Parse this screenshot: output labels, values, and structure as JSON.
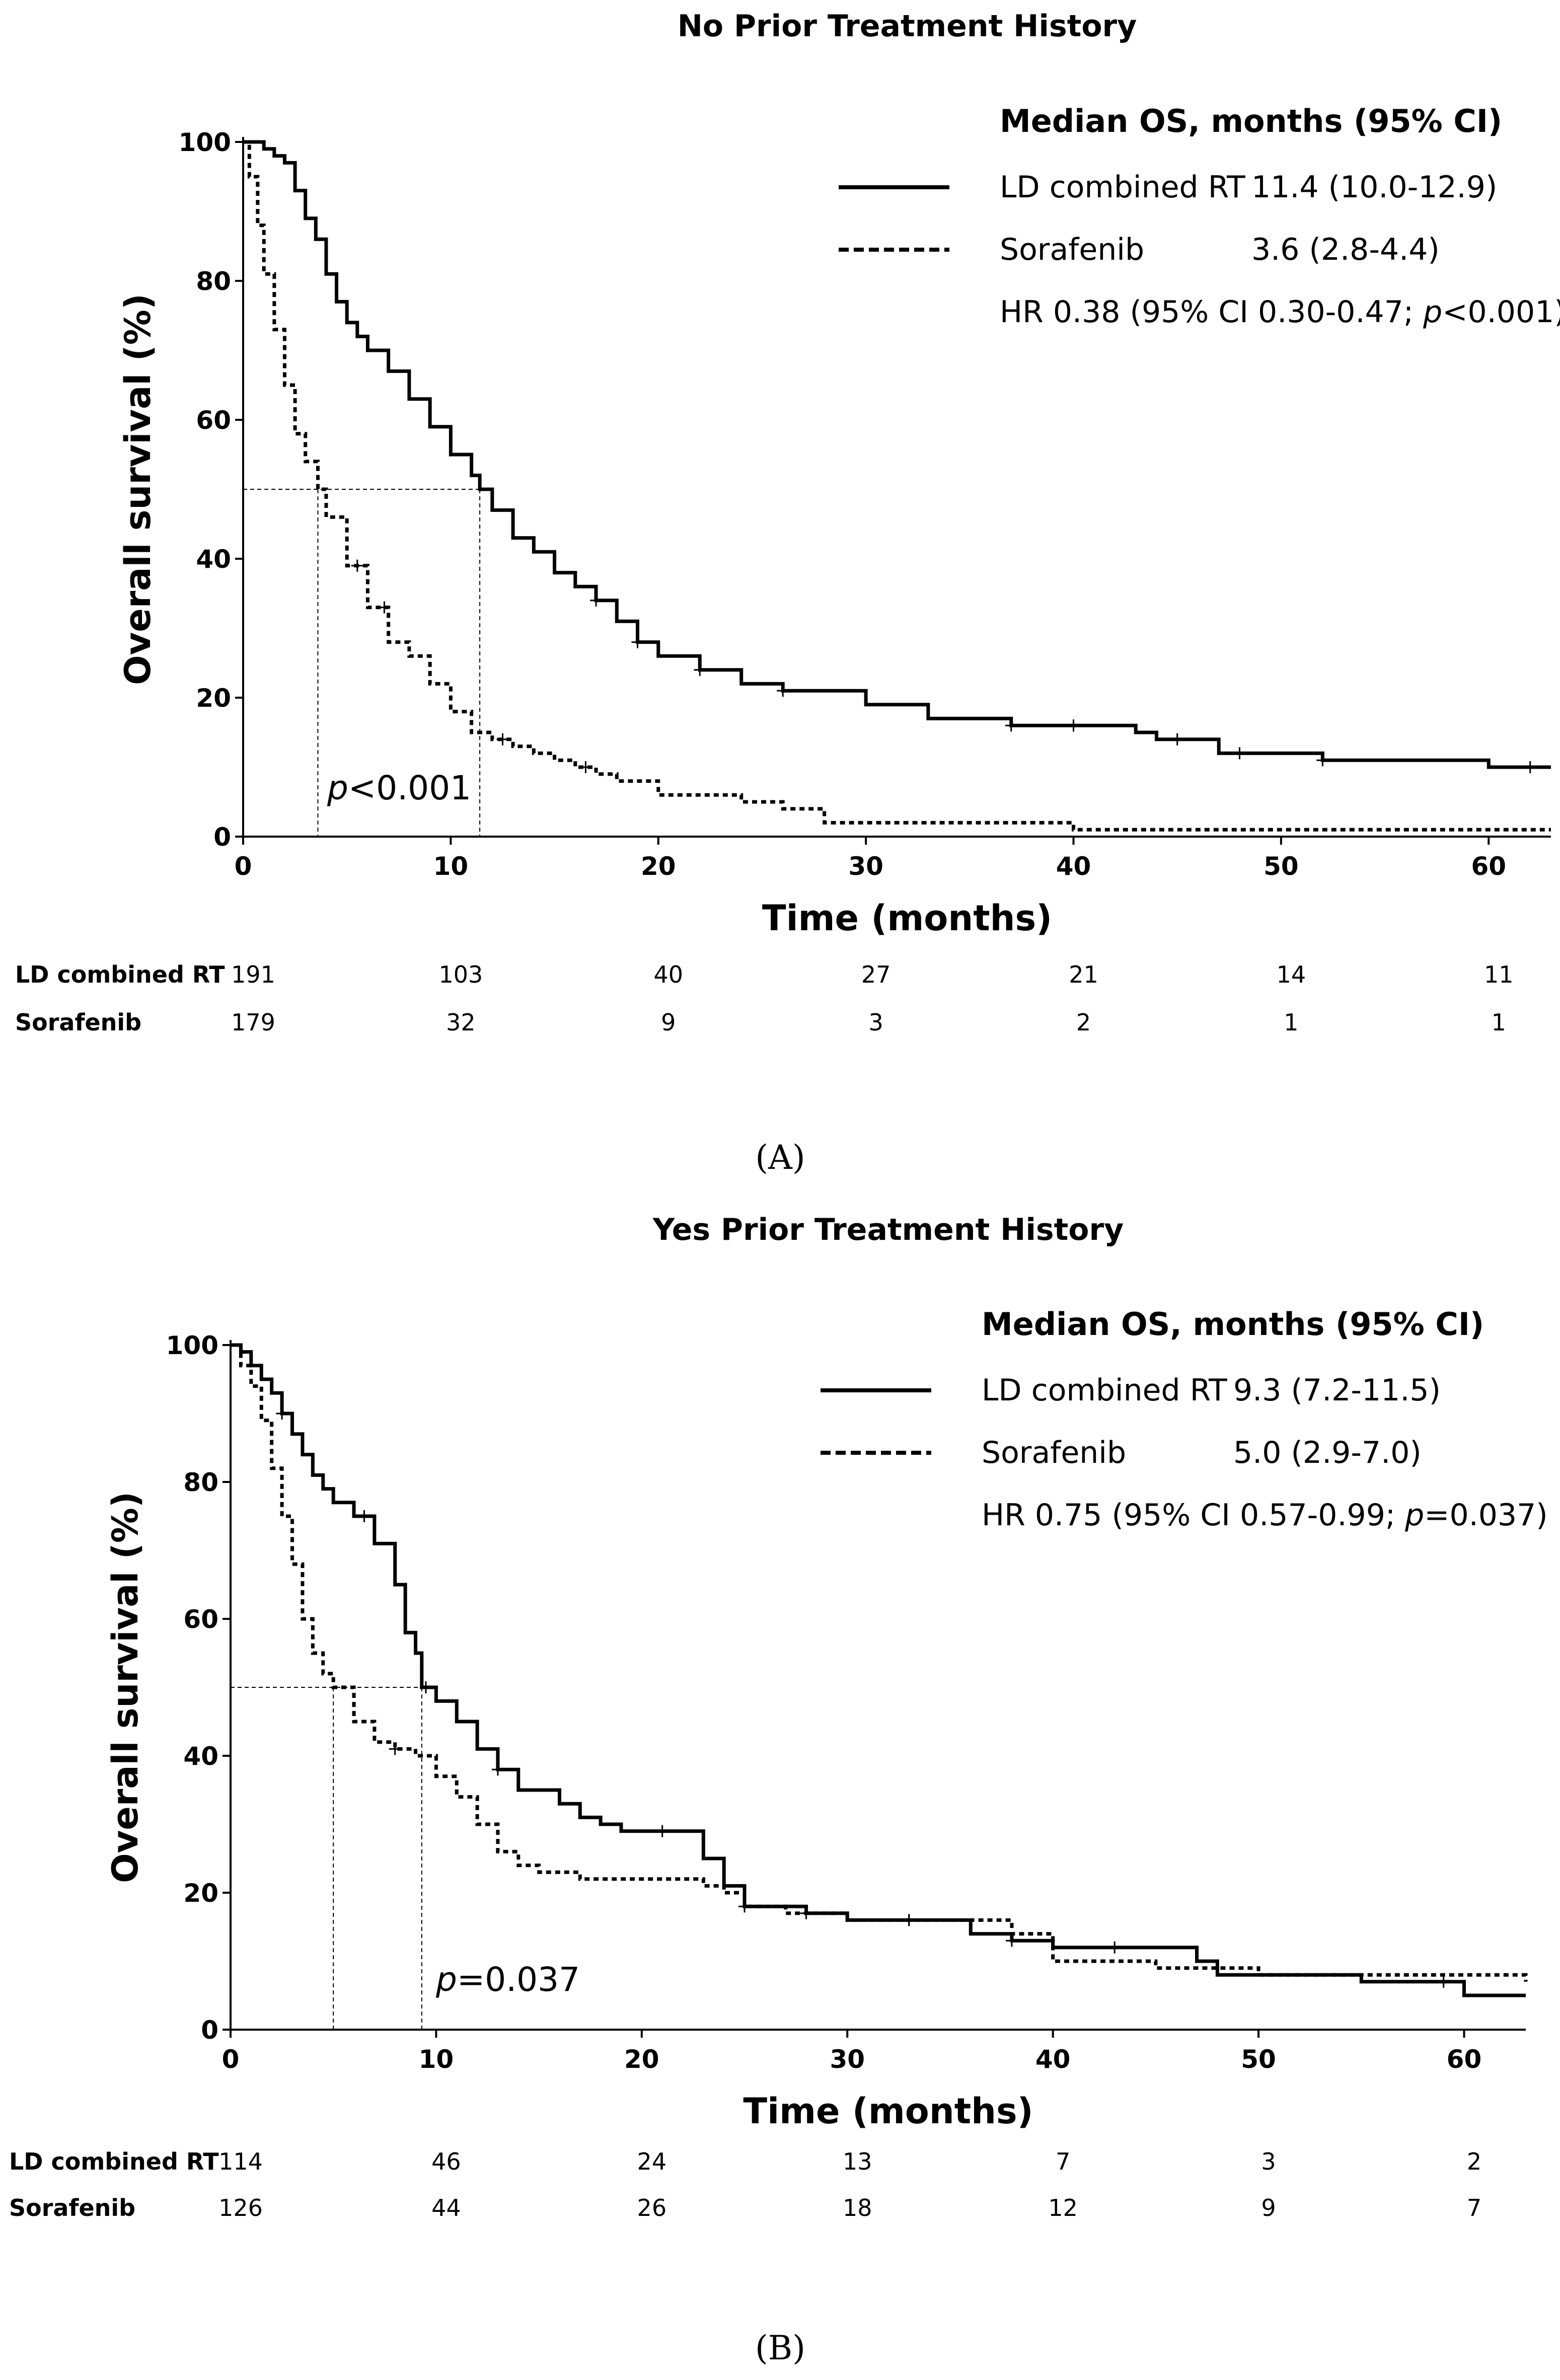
{
  "chart_data": [
    {
      "type": "line",
      "panel_label": "(A)",
      "title": "No Prior Treatment History",
      "xlabel": "Time (months)",
      "ylabel": "Overall survival (%)",
      "xlim": [
        0,
        63
      ],
      "ylim": [
        0,
        100
      ],
      "xticks": [
        0,
        10,
        20,
        30,
        40,
        50,
        60
      ],
      "yticks": [
        0,
        20,
        40,
        60,
        80,
        100
      ],
      "legend": {
        "heading": "Median OS, months (95% CI)",
        "entries": [
          {
            "name": "LD combined RT",
            "value": "11.4 (10.0-12.9)",
            "style": "solid"
          },
          {
            "name": "Sorafenib",
            "value": "3.6 (2.8-4.4)",
            "style": "dashed"
          }
        ],
        "hr_prefix": "HR 0.38 (95% CI 0.30-0.47; ",
        "hr_p": "p",
        "hr_suffix": "<0.001)"
      },
      "p_text": {
        "italic": "p",
        "rest": "<0.001"
      },
      "median_guides": [
        3.6,
        11.4
      ],
      "series": [
        {
          "name": "LD combined RT",
          "style": "solid",
          "x": [
            0,
            0.5,
            1,
            1.5,
            2,
            2.5,
            3,
            3.5,
            4,
            4.5,
            5,
            5.5,
            6,
            7,
            8,
            9,
            10,
            11,
            11.4,
            12,
            13,
            14,
            15,
            16,
            17,
            18,
            19,
            20,
            22,
            24,
            26,
            28,
            30,
            33,
            37,
            40,
            43,
            44,
            47,
            50,
            52,
            55,
            58,
            60,
            63
          ],
          "y": [
            100,
            100,
            99,
            98,
            97,
            93,
            89,
            86,
            81,
            77,
            74,
            72,
            70,
            67,
            63,
            59,
            55,
            52,
            50,
            47,
            43,
            41,
            38,
            36,
            34,
            31,
            28,
            26,
            24,
            22,
            21,
            21,
            19,
            17,
            16,
            16,
            15,
            14,
            12,
            12,
            11,
            11,
            11,
            10,
            10
          ]
        },
        {
          "name": "Sorafenib",
          "style": "dashed",
          "x": [
            0,
            0.3,
            0.7,
            1,
            1.5,
            2,
            2.5,
            3,
            3.6,
            4,
            5,
            6,
            7,
            8,
            9,
            10,
            11,
            12,
            13,
            14,
            15,
            16,
            17,
            18,
            20,
            22,
            24,
            26,
            27,
            28,
            30,
            33,
            37,
            40,
            45,
            50,
            55,
            60,
            63
          ],
          "y": [
            100,
            95,
            88,
            81,
            73,
            65,
            58,
            54,
            50,
            46,
            39,
            33,
            28,
            26,
            22,
            18,
            15,
            14,
            13,
            12,
            11,
            10,
            9,
            8,
            6,
            6,
            5,
            4,
            4,
            2,
            2,
            2,
            2,
            1,
            1,
            1,
            1,
            1,
            1
          ]
        }
      ],
      "censor_marks": [
        {
          "series": "LD combined RT",
          "x": [
            17,
            19,
            22,
            26,
            37,
            40,
            45,
            48,
            52,
            62
          ]
        },
        {
          "series": "Sorafenib",
          "x": [
            5.5,
            6.8,
            12.5,
            16.5
          ]
        }
      ],
      "at_risk": {
        "rows": [
          {
            "label": "LD combined RT",
            "values": [
              "191",
              "103",
              "40",
              "27",
              "21",
              "14",
              "11"
            ]
          },
          {
            "label": "Sorafenib",
            "values": [
              "179",
              "32",
              "9",
              "3",
              "2",
              "1",
              "1"
            ]
          }
        ]
      }
    },
    {
      "type": "line",
      "panel_label": "(B)",
      "title": "Yes Prior Treatment History",
      "xlabel": "Time (months)",
      "ylabel": "Overall survival (%)",
      "xlim": [
        0,
        63
      ],
      "ylim": [
        0,
        100
      ],
      "xticks": [
        0,
        10,
        20,
        30,
        40,
        50,
        60
      ],
      "yticks": [
        0,
        20,
        40,
        60,
        80,
        100
      ],
      "legend": {
        "heading": "Median OS, months (95% CI)",
        "entries": [
          {
            "name": "LD combined RT",
            "value": "9.3 (7.2-11.5)",
            "style": "solid"
          },
          {
            "name": "Sorafenib",
            "value": "5.0 (2.9-7.0)",
            "style": "dashed"
          }
        ],
        "hr_prefix": "HR 0.75 (95% CI 0.57-0.99; ",
        "hr_p": "p",
        "hr_suffix": "=0.037)"
      },
      "p_text": {
        "italic": "p",
        "rest": "=0.037"
      },
      "median_guides": [
        5.0,
        9.3
      ],
      "series": [
        {
          "name": "LD combined RT",
          "style": "solid",
          "x": [
            0,
            0.5,
            1,
            1.5,
            2,
            2.5,
            3,
            3.5,
            4,
            4.5,
            5,
            6,
            7,
            8,
            8.5,
            9,
            9.3,
            10,
            11,
            12,
            13,
            14,
            15,
            16,
            17,
            18,
            19,
            20,
            22,
            23,
            24,
            25,
            28,
            30,
            35,
            36,
            38,
            40,
            43,
            45,
            47,
            48,
            50,
            55,
            60,
            63
          ],
          "y": [
            100,
            99,
            97,
            95,
            93,
            90,
            87,
            84,
            81,
            79,
            77,
            75,
            71,
            65,
            58,
            55,
            50,
            48,
            45,
            41,
            38,
            35,
            35,
            33,
            31,
            30,
            29,
            29,
            29,
            25,
            21,
            18,
            17,
            16,
            16,
            14,
            13,
            12,
            12,
            12,
            10,
            8,
            8,
            7,
            5,
            5
          ]
        },
        {
          "name": "Sorafenib",
          "style": "dashed",
          "x": [
            0,
            0.5,
            1,
            1.5,
            2,
            2.5,
            3,
            3.5,
            4,
            4.5,
            5,
            6,
            7,
            8,
            9,
            10,
            11,
            12,
            13,
            14,
            15,
            17,
            20,
            22,
            23,
            24,
            25,
            27,
            30,
            35,
            38,
            40,
            45,
            50,
            55,
            60,
            63
          ],
          "y": [
            100,
            97,
            94,
            89,
            82,
            75,
            68,
            60,
            55,
            52,
            50,
            45,
            42,
            41,
            40,
            37,
            34,
            30,
            26,
            24,
            23,
            22,
            22,
            22,
            21,
            20,
            18,
            17,
            16,
            16,
            14,
            10,
            9,
            8,
            8,
            8,
            7
          ]
        }
      ],
      "censor_marks": [
        {
          "series": "LD combined RT",
          "x": [
            2.5,
            6.5,
            9.5,
            13,
            21,
            28,
            33,
            38,
            43,
            59
          ]
        },
        {
          "series": "Sorafenib",
          "x": [
            8,
            25,
            33
          ]
        }
      ],
      "at_risk": {
        "rows": [
          {
            "label": "LD combined RT",
            "values": [
              "114",
              "46",
              "24",
              "13",
              "7",
              "3",
              "2"
            ]
          },
          {
            "label": "Sorafenib",
            "values": [
              "126",
              "44",
              "26",
              "18",
              "12",
              "9",
              "7"
            ]
          }
        ]
      }
    }
  ]
}
